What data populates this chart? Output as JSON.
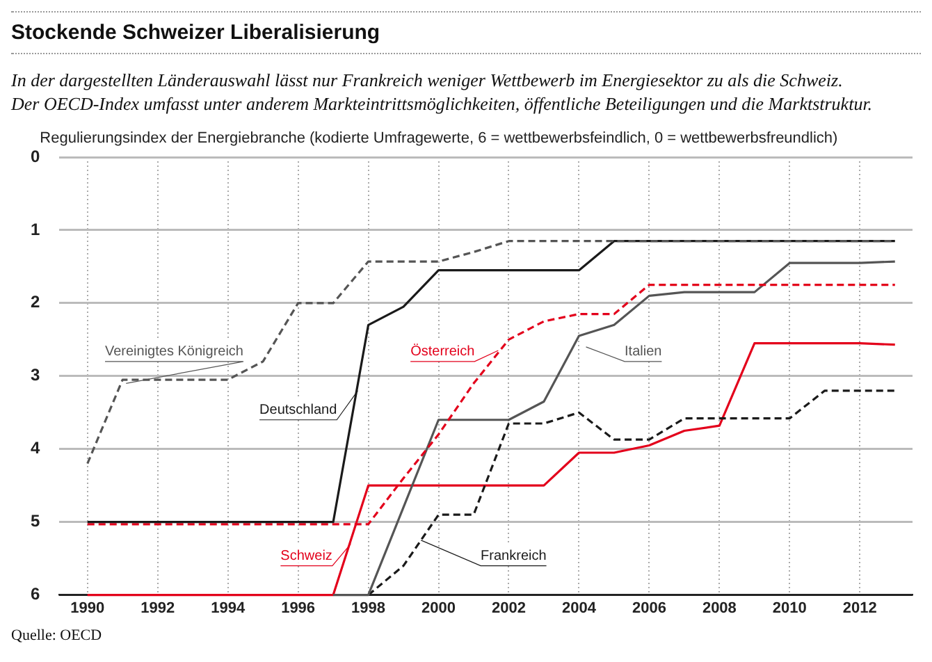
{
  "chart_data": {
    "type": "line",
    "title": "Stockende Schweizer Liberalisierung",
    "subtitle": "In der dargestellten Länderauswahl lässt nur Frankreich weniger Wettbewerb im Energiesektor zu als die Schweiz.\nDer OECD-Index umfasst unter anderem Markteintrittsmöglichkeiten, öffentliche Beteiligungen und die Marktstruktur.",
    "ylabel": "Regulierungsindex der Energiebranche (kodierte Umfragewerte, 6 = wettbewerbsfeindlich, 0 = wettbewerbsfreundlich)",
    "x": [
      1990,
      1991,
      1992,
      1993,
      1994,
      1995,
      1996,
      1997,
      1998,
      1999,
      2000,
      2001,
      2002,
      2003,
      2004,
      2005,
      2006,
      2007,
      2008,
      2009,
      2010,
      2011,
      2012,
      2013
    ],
    "series": [
      {
        "name": "Vereinigtes Königreich",
        "color": "#555555",
        "line_style": "dashed",
        "values": [
          4.2,
          3.05,
          3.05,
          3.05,
          3.05,
          2.8,
          2.0,
          2.0,
          1.43,
          1.43,
          1.43,
          1.3,
          1.15,
          1.15,
          1.15,
          1.15,
          1.15,
          1.15,
          1.15,
          1.15,
          1.15,
          1.15,
          1.15,
          1.15
        ]
      },
      {
        "name": "Deutschland",
        "color": "#1a1a1a",
        "line_style": "solid",
        "values": [
          5.0,
          5.0,
          5.0,
          5.0,
          5.0,
          5.0,
          5.0,
          5.0,
          2.3,
          2.05,
          1.55,
          1.55,
          1.55,
          1.55,
          1.55,
          1.15,
          1.15,
          1.15,
          1.15,
          1.15,
          1.15,
          1.15,
          1.15,
          1.15
        ]
      },
      {
        "name": "Österreich",
        "color": "#e3001b",
        "line_style": "dashed",
        "values": [
          5.03,
          5.03,
          5.03,
          5.03,
          5.03,
          5.03,
          5.03,
          5.03,
          5.03,
          4.4,
          3.8,
          3.1,
          2.5,
          2.25,
          2.15,
          2.15,
          1.75,
          1.75,
          1.75,
          1.75,
          1.75,
          1.75,
          1.75,
          1.75
        ]
      },
      {
        "name": "Italien",
        "color": "#555555",
        "line_style": "solid",
        "values": [
          null,
          null,
          null,
          null,
          null,
          null,
          null,
          6,
          6,
          4.8,
          3.6,
          3.6,
          3.6,
          3.35,
          2.45,
          2.3,
          1.9,
          1.85,
          1.85,
          1.85,
          1.45,
          1.45,
          1.45,
          1.43
        ]
      },
      {
        "name": "Frankreich",
        "color": "#1a1a1a",
        "line_style": "dashed",
        "values": [
          null,
          null,
          null,
          null,
          null,
          null,
          null,
          null,
          6,
          5.6,
          4.9,
          4.9,
          3.65,
          3.65,
          3.5,
          3.87,
          3.87,
          3.58,
          3.58,
          3.58,
          3.58,
          3.2,
          3.2,
          3.2
        ]
      },
      {
        "name": "Schweiz",
        "color": "#e3001b",
        "line_style": "solid",
        "values": [
          6,
          6,
          6,
          6,
          6,
          6,
          6,
          6,
          4.5,
          4.5,
          4.5,
          4.5,
          4.5,
          4.5,
          4.05,
          4.05,
          3.95,
          3.75,
          3.68,
          2.55,
          2.55,
          2.55,
          2.55,
          2.57
        ]
      }
    ],
    "xlim": [
      1989.2,
      2013.5
    ],
    "xticks": [
      1990,
      1992,
      1994,
      1996,
      1998,
      2000,
      2002,
      2004,
      2006,
      2008,
      2010,
      2012
    ],
    "ylim": [
      6,
      0
    ],
    "yticks": [
      0,
      1,
      2,
      3,
      4,
      5,
      6
    ],
    "grid": true,
    "legend": false,
    "marker": "none",
    "annotations": [
      "Quelle: OECD"
    ]
  }
}
